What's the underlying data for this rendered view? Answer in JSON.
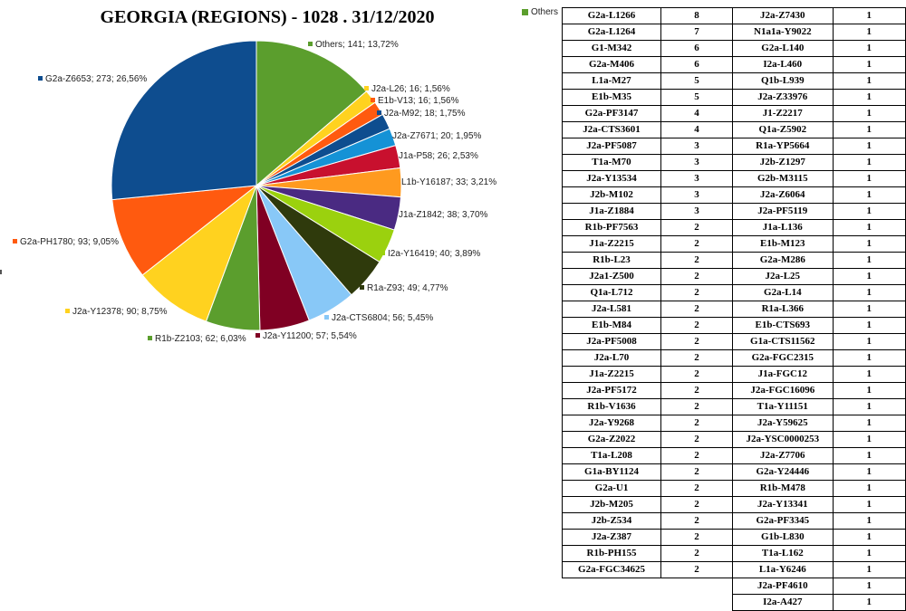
{
  "title": "GEORGIA (REGIONS) - 1028 . 31/12/2020",
  "chart_data": {
    "type": "pie",
    "title": "GEORGIA (REGIONS) - 1028 . 31/12/2020",
    "total": 1028,
    "slices": [
      {
        "label": "Others; 141; 13,72%",
        "name": "Others",
        "value": 141,
        "percent": 13.72,
        "color": "#5b9e2d"
      },
      {
        "label": "J2a-L26; 16; 1,56%",
        "name": "J2a-L26",
        "value": 16,
        "percent": 1.56,
        "color": "#ffd21f"
      },
      {
        "label": "E1b-V13; 16; 1,56%",
        "name": "E1b-V13",
        "value": 16,
        "percent": 1.56,
        "color": "#ff5a0f"
      },
      {
        "label": "J2a-M92; 18; 1,75%",
        "name": "J2a-M92",
        "value": 18,
        "percent": 1.75,
        "color": "#0e4d8f"
      },
      {
        "label": "J2a-Z7671; 20; 1,95%",
        "name": "J2a-Z7671",
        "value": 20,
        "percent": 1.95,
        "color": "#1592d6"
      },
      {
        "label": "J1a-P58; 26; 2,53%",
        "name": "J1a-P58",
        "value": 26,
        "percent": 2.53,
        "color": "#c8102e"
      },
      {
        "label": "L1b-Y16187; 33; 3,21%",
        "name": "L1b-Y16187",
        "value": 33,
        "percent": 3.21,
        "color": "#ff9a1f"
      },
      {
        "label": "J1a-Z1842; 38; 3,70%",
        "name": "J1a-Z1842",
        "value": 38,
        "percent": 3.7,
        "color": "#4a2a82"
      },
      {
        "label": "I2a-Y16419; 40; 3,89%",
        "name": "I2a-Y16419",
        "value": 40,
        "percent": 3.89,
        "color": "#9bd10e"
      },
      {
        "label": "R1a-Z93; 49; 4,77%",
        "name": "R1a-Z93",
        "value": 49,
        "percent": 4.77,
        "color": "#2f3a0c"
      },
      {
        "label": "J2a-CTS6804; 56; 5,45%",
        "name": "J2a-CTS6804",
        "value": 56,
        "percent": 5.45,
        "color": "#88c8f7"
      },
      {
        "label": "J2a-Y11200; 57; 5,54%",
        "name": "J2a-Y11200",
        "value": 57,
        "percent": 5.54,
        "color": "#800023"
      },
      {
        "label": "R1b-Z2103; 62; 6,03%",
        "name": "R1b-Z2103",
        "value": 62,
        "percent": 6.03,
        "color": "#5b9e2d"
      },
      {
        "label": "J2a-Y12378; 90; 8,75%",
        "name": "J2a-Y12378",
        "value": 90,
        "percent": 8.75,
        "color": "#ffd21f"
      },
      {
        "label": "G2a-PH1780; 93; 9,05%",
        "name": "G2a-PH1780",
        "value": 93,
        "percent": 9.05,
        "color": "#ff5a0f"
      },
      {
        "label": "G2a-Z6653; 273; 26,56%",
        "name": "G2a-Z6653",
        "value": 273,
        "percent": 26.56,
        "color": "#0e4d8f"
      }
    ],
    "legend": {
      "label": "Others",
      "color": "#5b9e2d",
      "placement": "top-right"
    }
  },
  "others_table_1": [
    [
      "G2a-L1266",
      "8"
    ],
    [
      "G2a-L1264",
      "7"
    ],
    [
      "G1-M342",
      "6"
    ],
    [
      "G2a-M406",
      "6"
    ],
    [
      "L1a-M27",
      "5"
    ],
    [
      "E1b-M35",
      "5"
    ],
    [
      "G2a-PF3147",
      "4"
    ],
    [
      "J2a-CTS3601",
      "4"
    ],
    [
      "J2a-PF5087",
      "3"
    ],
    [
      "T1a-M70",
      "3"
    ],
    [
      "J2a-Y13534",
      "3"
    ],
    [
      "J2b-M102",
      "3"
    ],
    [
      "J1a-Z1884",
      "3"
    ],
    [
      "R1b-PF7563",
      "2"
    ],
    [
      "J1a-Z2215",
      "2"
    ],
    [
      "R1b-L23",
      "2"
    ],
    [
      "J2a1-Z500",
      "2"
    ],
    [
      "Q1a-L712",
      "2"
    ],
    [
      "J2a-L581",
      "2"
    ],
    [
      "E1b-M84",
      "2"
    ],
    [
      "J2a-PF5008",
      "2"
    ],
    [
      "J2a-L70",
      "2"
    ],
    [
      "J1a-Z2215",
      "2"
    ],
    [
      "J2a-PF5172",
      "2"
    ],
    [
      "R1b-V1636",
      "2"
    ],
    [
      "J2a-Y9268",
      "2"
    ],
    [
      "G2a-Z2022",
      "2"
    ],
    [
      "T1a-L208",
      "2"
    ],
    [
      "G1a-BY1124",
      "2"
    ],
    [
      "G2a-U1",
      "2"
    ],
    [
      "J2b-M205",
      "2"
    ],
    [
      "J2b-Z534",
      "2"
    ],
    [
      "J2a-Z387",
      "2"
    ],
    [
      "R1b-PH155",
      "2"
    ],
    [
      "G2a-FGC34625",
      "2"
    ]
  ],
  "others_table_2": [
    [
      "J2a-Z7430",
      "1"
    ],
    [
      "N1a1a-Y9022",
      "1"
    ],
    [
      "G2a-L140",
      "1"
    ],
    [
      "I2a-L460",
      "1"
    ],
    [
      "Q1b-L939",
      "1"
    ],
    [
      "J2a-Z33976",
      "1"
    ],
    [
      "J1-Z2217",
      "1"
    ],
    [
      "Q1a-Z5902",
      "1"
    ],
    [
      "R1a-YP5664",
      "1"
    ],
    [
      "J2b-Z1297",
      "1"
    ],
    [
      "G2b-M3115",
      "1"
    ],
    [
      "J2a-Z6064",
      "1"
    ],
    [
      "J2a-PF5119",
      "1"
    ],
    [
      "J1a-L136",
      "1"
    ],
    [
      "E1b-M123",
      "1"
    ],
    [
      "G2a-M286",
      "1"
    ],
    [
      "J2a-L25",
      "1"
    ],
    [
      "G2a-L14",
      "1"
    ],
    [
      "R1a-L366",
      "1"
    ],
    [
      "E1b-CTS693",
      "1"
    ],
    [
      "G1a-CTS11562",
      "1"
    ],
    [
      "G2a-FGC2315",
      "1"
    ],
    [
      "J1a-FGC12",
      "1"
    ],
    [
      "J2a-FGC16096",
      "1"
    ],
    [
      "T1a-Y11151",
      "1"
    ],
    [
      "J2a-Y59625",
      "1"
    ],
    [
      "J2a-YSC0000253",
      "1"
    ],
    [
      "J2a-Z7706",
      "1"
    ],
    [
      "G2a-Y24446",
      "1"
    ],
    [
      "R1b-M478",
      "1"
    ],
    [
      "J2a-Y13341",
      "1"
    ],
    [
      "G2a-PF3345",
      "1"
    ],
    [
      "G1b-L830",
      "1"
    ],
    [
      "T1a-L162",
      "1"
    ],
    [
      "L1a-Y6246",
      "1"
    ],
    [
      "J2a-PF4610",
      "1"
    ],
    [
      "I2a-A427",
      "1"
    ]
  ]
}
